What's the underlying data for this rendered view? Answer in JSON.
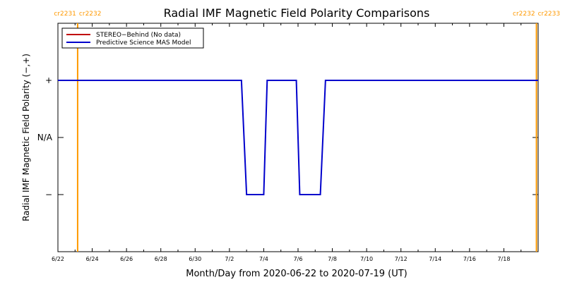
{
  "chart_data": {
    "type": "line",
    "title": "Radial IMF Magnetic Field Polarity Comparisons",
    "xlabel": "Month/Day from 2020-06-22 to 2020-07-19 (UT)",
    "ylabel": "Radial IMF Magnetic Field Polarity (−,+)",
    "x_unit": "days from 2020-06-22",
    "xlim": [
      0,
      28
    ],
    "ylim": [
      -2,
      2
    ],
    "x_ticks": [
      {
        "x": 0,
        "label": "6/22"
      },
      {
        "x": 2,
        "label": "6/24"
      },
      {
        "x": 4,
        "label": "6/26"
      },
      {
        "x": 6,
        "label": "6/28"
      },
      {
        "x": 8,
        "label": "6/30"
      },
      {
        "x": 10,
        "label": "7/2"
      },
      {
        "x": 12,
        "label": "7/4"
      },
      {
        "x": 14,
        "label": "7/6"
      },
      {
        "x": 16,
        "label": "7/8"
      },
      {
        "x": 18,
        "label": "7/10"
      },
      {
        "x": 20,
        "label": "7/12"
      },
      {
        "x": 22,
        "label": "7/14"
      },
      {
        "x": 24,
        "label": "7/16"
      },
      {
        "x": 26,
        "label": "7/18"
      }
    ],
    "y_ticks": [
      {
        "y": 1,
        "label": "+"
      },
      {
        "y": 0,
        "label": "N/A"
      },
      {
        "y": -1,
        "label": "−"
      }
    ],
    "legend": {
      "placement": "top-left",
      "entries": [
        {
          "name": "STEREO−Behind (No data)",
          "color": "#c00000"
        },
        {
          "name": "Predictive Science MAS Model",
          "color": "#0000cc"
        }
      ]
    },
    "series": [
      {
        "name": "Predictive Science MAS Model",
        "color": "#0000cc",
        "x": [
          0,
          10.7,
          11.0,
          12.0,
          12.2,
          13.9,
          14.1,
          15.3,
          15.6,
          28
        ],
        "y": [
          1,
          1,
          -1,
          -1,
          1,
          1,
          -1,
          -1,
          1,
          1
        ]
      }
    ],
    "rotation_markers": [
      {
        "x": 1.15,
        "left_label": "cr2231",
        "right_label": "cr2232",
        "color": "#ff9900"
      },
      {
        "x": 27.9,
        "left_label": "cr2232",
        "right_label": "cr2233",
        "color": "#ff9900"
      }
    ]
  }
}
